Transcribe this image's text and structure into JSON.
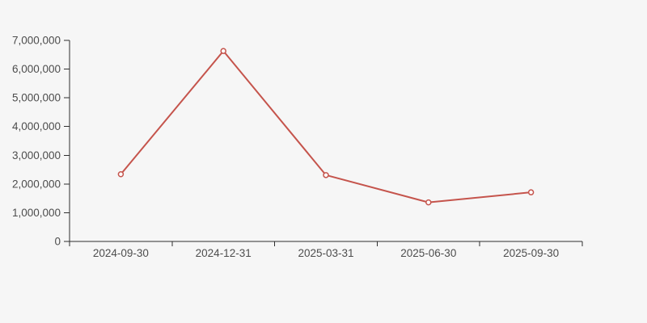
{
  "page": {
    "background_color": "#f6f6f6"
  },
  "chart_data": {
    "type": "line",
    "title": "",
    "categories": [
      "2024-09-30",
      "2024-12-31",
      "2025-03-31",
      "2025-06-30",
      "2025-09-30"
    ],
    "series": [
      {
        "name": "value",
        "values": [
          2340000,
          6630000,
          2310000,
          1360000,
          1710000
        ],
        "color": "#c5544c",
        "marker": "open-circle",
        "marker_fill": "#ffffff"
      }
    ],
    "ylim": [
      0,
      7000000
    ],
    "ytick_interval": 1000000,
    "ytick_labels": [
      "0",
      "1,000,000",
      "2,000,000",
      "3,000,000",
      "4,000,000",
      "5,000,000",
      "6,000,000",
      "7,000,000"
    ],
    "xlabel": "",
    "ylabel": "",
    "grid": false,
    "legend": false,
    "axis_color": "#2f2f2f",
    "label_color": "#4d4d4d"
  }
}
